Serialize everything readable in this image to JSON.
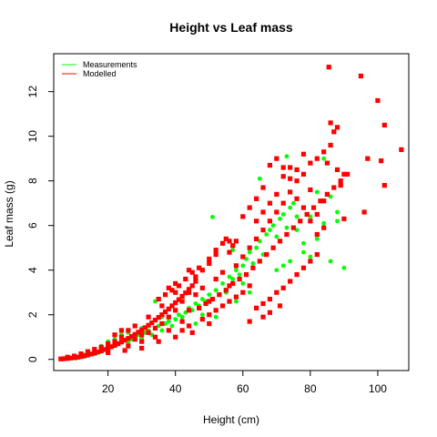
{
  "chart_data": {
    "type": "scatter",
    "title": "Height vs Leaf mass",
    "xlabel": "Height (cm)",
    "ylabel": "Leaf mass (g)",
    "xlim": [
      3.9,
      109.2
    ],
    "ylim": [
      -0.5,
      13.7
    ],
    "x_ticks": [
      20,
      40,
      60,
      80,
      100
    ],
    "y_ticks": [
      0,
      2,
      4,
      6,
      8,
      10,
      12
    ],
    "grid": false,
    "legend_position": "top-left",
    "series": [
      {
        "name": "Measurements",
        "color": "#00ff00",
        "marker": "circle",
        "points": [
          [
            10.5,
            0.05
          ],
          [
            11.2,
            0.08
          ],
          [
            12.0,
            0.1
          ],
          [
            12.8,
            0.12
          ],
          [
            13.5,
            0.15
          ],
          [
            14.2,
            0.18
          ],
          [
            15.0,
            0.22
          ],
          [
            15.8,
            0.25
          ],
          [
            16.5,
            0.28
          ],
          [
            17.3,
            0.32
          ],
          [
            18.0,
            0.36
          ],
          [
            11.8,
            0.12
          ],
          [
            13.0,
            0.2
          ],
          [
            14.8,
            0.26
          ],
          [
            16.2,
            0.34
          ],
          [
            17.8,
            0.4
          ],
          [
            19.0,
            0.45
          ],
          [
            20.0,
            0.5
          ],
          [
            21.0,
            0.55
          ],
          [
            22.0,
            0.6
          ],
          [
            23.0,
            0.7
          ],
          [
            24.0,
            0.8
          ],
          [
            25.0,
            0.85
          ],
          [
            26.0,
            0.75
          ],
          [
            27.0,
            0.9
          ],
          [
            28.0,
            1.0
          ],
          [
            29.0,
            1.1
          ],
          [
            30.0,
            0.95
          ],
          [
            31.0,
            1.2
          ],
          [
            32.0,
            1.3
          ],
          [
            33.0,
            1.1
          ],
          [
            34.0,
            1.4
          ],
          [
            35.0,
            1.5
          ],
          [
            36.0,
            1.3
          ],
          [
            37.0,
            1.6
          ],
          [
            38.0,
            1.7
          ],
          [
            39.0,
            1.5
          ],
          [
            40.0,
            1.8
          ],
          [
            41.0,
            2.0
          ],
          [
            42.0,
            1.9
          ],
          [
            43.0,
            2.1
          ],
          [
            44.0,
            2.3
          ],
          [
            45.0,
            2.2
          ],
          [
            46.0,
            2.5
          ],
          [
            47.0,
            2.4
          ],
          [
            48.0,
            2.7
          ],
          [
            49.0,
            2.6
          ],
          [
            50.0,
            2.9
          ],
          [
            52.0,
            3.1
          ],
          [
            54.0,
            3.4
          ],
          [
            55.0,
            3.0
          ],
          [
            56.0,
            3.7
          ],
          [
            57.0,
            3.6
          ],
          [
            58.0,
            4.0
          ],
          [
            59.0,
            3.8
          ],
          [
            60.0,
            4.2
          ],
          [
            61.0,
            4.5
          ],
          [
            62.0,
            4.8
          ],
          [
            63.0,
            4.3
          ],
          [
            64.0,
            5.0
          ],
          [
            65.0,
            5.3
          ],
          [
            66.0,
            4.7
          ],
          [
            67.0,
            5.6
          ],
          [
            68.0,
            5.8
          ],
          [
            69.0,
            6.0
          ],
          [
            70.0,
            5.5
          ],
          [
            71.0,
            6.3
          ],
          [
            72.0,
            6.5
          ],
          [
            73.0,
            5.9
          ],
          [
            74.0,
            6.8
          ],
          [
            75.0,
            7.0
          ],
          [
            76.0,
            6.4
          ],
          [
            78.0,
            5.2
          ],
          [
            80.0,
            4.6
          ],
          [
            82.0,
            5.4
          ],
          [
            84.0,
            6.1
          ],
          [
            86.0,
            7.3
          ],
          [
            88.0,
            6.6
          ],
          [
            90.0,
            4.1
          ],
          [
            51.0,
            6.38
          ],
          [
            73.0,
            9.1
          ],
          [
            65.0,
            8.1
          ],
          [
            72.0,
            4.2
          ],
          [
            76.0,
            5.8
          ],
          [
            80.0,
            6.4
          ],
          [
            86.0,
            4.4
          ],
          [
            88.0,
            6.2
          ],
          [
            57.0,
            4.9
          ],
          [
            52.0,
            1.9
          ],
          [
            36.0,
            1.9
          ],
          [
            34.0,
            2.6
          ],
          [
            30.0,
            1.4
          ],
          [
            26.0,
            1.2
          ],
          [
            24.0,
            1.1
          ],
          [
            22.0,
            0.9
          ],
          [
            20.0,
            0.8
          ],
          [
            18.0,
            0.6
          ],
          [
            16.0,
            0.4
          ],
          [
            14.0,
            0.3
          ],
          [
            12.5,
            0.2
          ],
          [
            46.0,
            1.6
          ],
          [
            48.0,
            2.0
          ],
          [
            58.0,
            2.6
          ],
          [
            62.0,
            3.0
          ],
          [
            70.0,
            4.0
          ],
          [
            74.0,
            4.4
          ],
          [
            78.0,
            4.8
          ],
          [
            82.0,
            7.5
          ],
          [
            84.0,
            9.0
          ],
          [
            60.0,
            3.4
          ]
        ]
      },
      {
        "name": "Modelled",
        "color": "#ff0000",
        "marker": "square",
        "points": [
          [
            6.0,
            0.02
          ],
          [
            7.0,
            0.03
          ],
          [
            8.0,
            0.04
          ],
          [
            9.0,
            0.06
          ],
          [
            10.0,
            0.08
          ],
          [
            11.0,
            0.1
          ],
          [
            12.0,
            0.13
          ],
          [
            13.0,
            0.16
          ],
          [
            14.0,
            0.2
          ],
          [
            15.0,
            0.24
          ],
          [
            16.0,
            0.28
          ],
          [
            17.0,
            0.33
          ],
          [
            18.0,
            0.38
          ],
          [
            19.0,
            0.44
          ],
          [
            20.0,
            0.5
          ],
          [
            21.0,
            0.57
          ],
          [
            22.0,
            0.63
          ],
          [
            23.0,
            0.7
          ],
          [
            24.0,
            0.78
          ],
          [
            25.0,
            0.86
          ],
          [
            26.0,
            0.94
          ],
          [
            27.0,
            1.03
          ],
          [
            28.0,
            1.12
          ],
          [
            29.0,
            1.22
          ],
          [
            30.0,
            1.32
          ],
          [
            31.0,
            1.42
          ],
          [
            32.0,
            1.53
          ],
          [
            33.0,
            1.64
          ],
          [
            34.0,
            1.76
          ],
          [
            35.0,
            1.88
          ],
          [
            36.0,
            2.0
          ],
          [
            37.0,
            2.13
          ],
          [
            38.0,
            2.26
          ],
          [
            39.0,
            2.4
          ],
          [
            40.0,
            2.54
          ],
          [
            41.0,
            2.68
          ],
          [
            42.0,
            2.83
          ],
          [
            43.0,
            2.98
          ],
          [
            44.0,
            3.14
          ],
          [
            45.0,
            3.3
          ],
          [
            22.0,
            1.1
          ],
          [
            24.0,
            1.3
          ],
          [
            26.0,
            0.6
          ],
          [
            28.0,
            1.5
          ],
          [
            30.0,
            0.8
          ],
          [
            32.0,
            1.9
          ],
          [
            34.0,
            1.0
          ],
          [
            36.0,
            2.4
          ],
          [
            38.0,
            1.3
          ],
          [
            40.0,
            3.0
          ],
          [
            42.0,
            1.7
          ],
          [
            44.0,
            2.2
          ],
          [
            46.0,
            2.9
          ],
          [
            48.0,
            3.2
          ],
          [
            50.0,
            2.6
          ],
          [
            52.0,
            3.6
          ],
          [
            54.0,
            3.9
          ],
          [
            56.0,
            3.3
          ],
          [
            58.0,
            4.2
          ],
          [
            60.0,
            4.6
          ],
          [
            62.0,
            5.0
          ],
          [
            64.0,
            5.4
          ],
          [
            66.0,
            5.8
          ],
          [
            68.0,
            6.2
          ],
          [
            70.0,
            6.6
          ],
          [
            72.0,
            7.0
          ],
          [
            74.0,
            7.5
          ],
          [
            76.0,
            8.0
          ],
          [
            78.0,
            8.3
          ],
          [
            80.0,
            8.8
          ],
          [
            55.0,
            5.4
          ],
          [
            56.0,
            5.3
          ],
          [
            57.0,
            5.1
          ],
          [
            47.0,
            4.1
          ],
          [
            44.0,
            4.0
          ],
          [
            50.0,
            4.3
          ],
          [
            52.0,
            4.7
          ],
          [
            46.0,
            3.7
          ],
          [
            40.0,
            3.4
          ],
          [
            38.0,
            3.2
          ],
          [
            42.0,
            1.3
          ],
          [
            44.0,
            1.5
          ],
          [
            48.0,
            1.8
          ],
          [
            50.0,
            2.0
          ],
          [
            52.0,
            2.2
          ],
          [
            54.0,
            2.4
          ],
          [
            56.0,
            2.6
          ],
          [
            58.0,
            2.8
          ],
          [
            60.0,
            3.0
          ],
          [
            62.0,
            3.3
          ],
          [
            64.0,
            2.3
          ],
          [
            66.0,
            2.5
          ],
          [
            68.0,
            2.7
          ],
          [
            70.0,
            3.0
          ],
          [
            72.0,
            3.2
          ],
          [
            74.0,
            3.5
          ],
          [
            76.0,
            3.8
          ],
          [
            78.0,
            4.1
          ],
          [
            80.0,
            4.4
          ],
          [
            82.0,
            4.7
          ],
          [
            64.0,
            6.2
          ],
          [
            66.0,
            6.6
          ],
          [
            68.0,
            7.0
          ],
          [
            70.0,
            7.4
          ],
          [
            72.0,
            8.2
          ],
          [
            74.0,
            8.6
          ],
          [
            76.0,
            7.2
          ],
          [
            78.0,
            6.8
          ],
          [
            80.0,
            6.2
          ],
          [
            82.0,
            5.6
          ],
          [
            84.0,
            7.1
          ],
          [
            85.0,
            8.8
          ],
          [
            86.0,
            9.6
          ],
          [
            87.0,
            10.2
          ],
          [
            88.0,
            8.5
          ],
          [
            89.0,
            7.8
          ],
          [
            90.0,
            6.3
          ],
          [
            84.0,
            5.9
          ],
          [
            82.0,
            6.5
          ],
          [
            80.0,
            7.6
          ],
          [
            85.5,
            13.1
          ],
          [
            95.0,
            12.7
          ],
          [
            100.0,
            11.6
          ],
          [
            102.0,
            10.5
          ],
          [
            107.0,
            9.4
          ],
          [
            101.0,
            8.9
          ],
          [
            97.0,
            9.0
          ],
          [
            96.0,
            6.6
          ],
          [
            102.0,
            7.8
          ],
          [
            90.0,
            8.3
          ],
          [
            86.0,
            10.6
          ],
          [
            88.0,
            10.4
          ],
          [
            84.0,
            9.3
          ],
          [
            82.0,
            9.0
          ],
          [
            78.0,
            9.2
          ],
          [
            76.0,
            8.5
          ],
          [
            74.0,
            8.1
          ],
          [
            72.0,
            8.6
          ],
          [
            70.0,
            9.0
          ],
          [
            68.0,
            8.7
          ],
          [
            66.0,
            7.7
          ],
          [
            64.0,
            7.2
          ],
          [
            62.0,
            6.8
          ],
          [
            60.0,
            6.4
          ],
          [
            58.0,
            5.3
          ],
          [
            56.0,
            4.8
          ],
          [
            54.0,
            5.2
          ],
          [
            52.0,
            4.9
          ],
          [
            50.0,
            4.5
          ],
          [
            48.0,
            4.0
          ],
          [
            46.0,
            3.5
          ],
          [
            44.0,
            3.0
          ],
          [
            42.0,
            2.6
          ],
          [
            40.0,
            2.2
          ],
          [
            38.0,
            1.9
          ],
          [
            36.0,
            1.6
          ],
          [
            34.0,
            1.4
          ],
          [
            32.0,
            1.2
          ],
          [
            30.0,
            1.1
          ],
          [
            28.0,
            0.9
          ],
          [
            26.0,
            1.3
          ],
          [
            24.0,
            1.0
          ],
          [
            22.0,
            0.8
          ],
          [
            20.0,
            0.7
          ],
          [
            18.0,
            0.55
          ],
          [
            16.0,
            0.45
          ],
          [
            14.0,
            0.35
          ],
          [
            12.0,
            0.25
          ],
          [
            10.0,
            0.15
          ],
          [
            8.0,
            0.1
          ],
          [
            35.0,
            2.7
          ],
          [
            37.0,
            2.9
          ],
          [
            39.0,
            3.1
          ],
          [
            41.0,
            3.3
          ],
          [
            43.0,
            3.6
          ],
          [
            45.0,
            3.9
          ],
          [
            47.0,
            2.3
          ],
          [
            49.0,
            2.5
          ],
          [
            51.0,
            2.7
          ],
          [
            53.0,
            2.9
          ],
          [
            55.0,
            3.1
          ],
          [
            57.0,
            3.4
          ],
          [
            59.0,
            3.6
          ],
          [
            61.0,
            3.8
          ],
          [
            63.0,
            4.1
          ],
          [
            65.0,
            4.4
          ],
          [
            67.0,
            4.7
          ],
          [
            69.0,
            5.0
          ],
          [
            71.0,
            5.3
          ],
          [
            73.0,
            5.6
          ],
          [
            75.0,
            5.9
          ],
          [
            77.0,
            6.2
          ],
          [
            79.0,
            6.5
          ],
          [
            81.0,
            6.8
          ],
          [
            83.0,
            7.1
          ],
          [
            85.0,
            7.4
          ],
          [
            87.0,
            7.7
          ],
          [
            89.0,
            8.0
          ],
          [
            91.0,
            8.3
          ],
          [
            50.0,
            1.6
          ],
          [
            45.0,
            1.2
          ],
          [
            40.0,
            1.0
          ],
          [
            35.0,
            0.8
          ],
          [
            30.0,
            0.5
          ],
          [
            25.0,
            0.4
          ],
          [
            20.0,
            0.3
          ],
          [
            62.0,
            1.7
          ],
          [
            66.0,
            1.9
          ],
          [
            68.0,
            2.1
          ],
          [
            71.0,
            2.4
          ]
        ]
      }
    ]
  }
}
